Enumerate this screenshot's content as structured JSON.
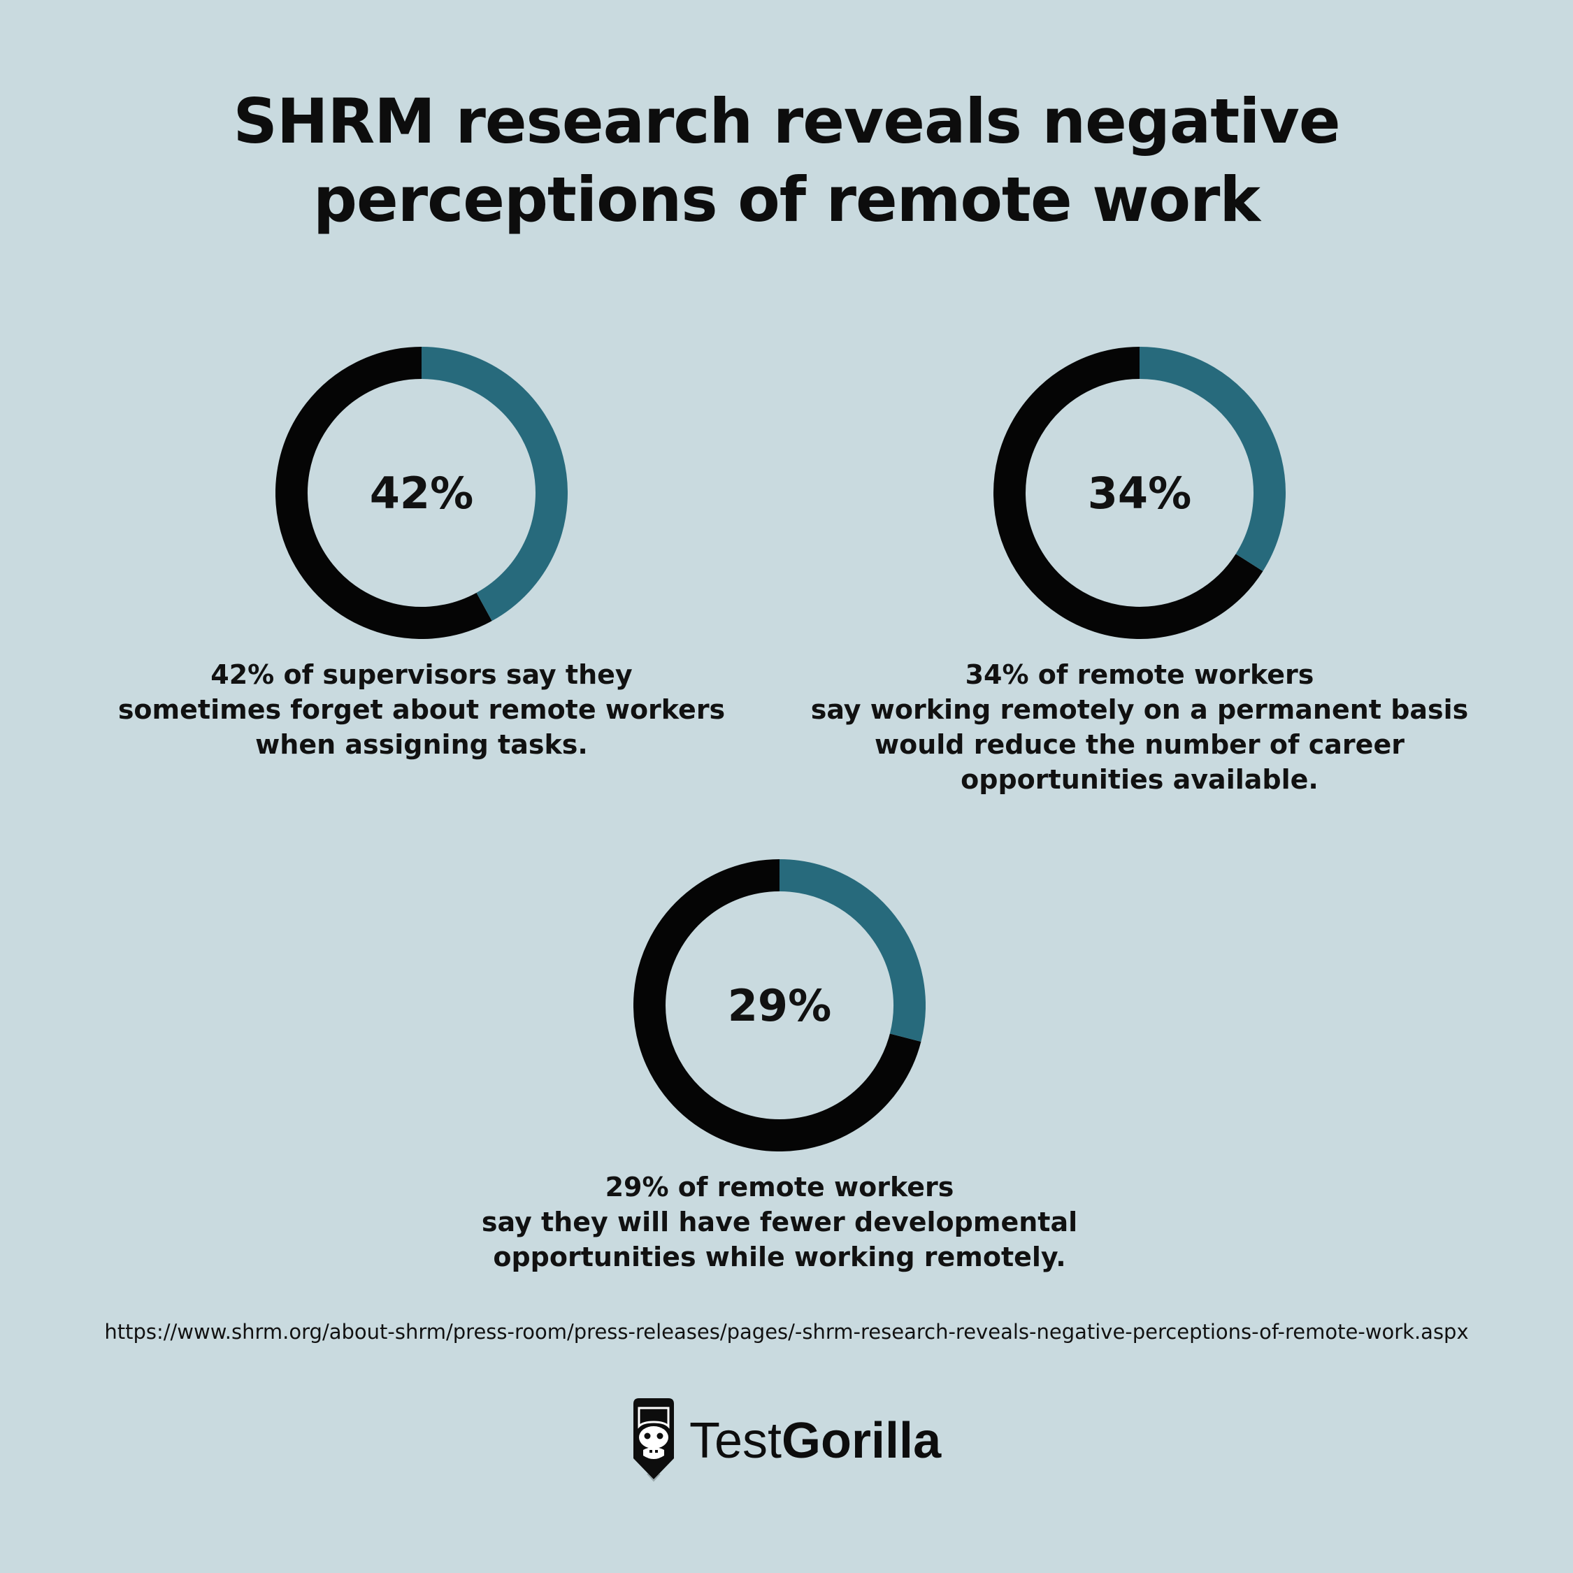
{
  "title": {
    "line1": "SHRM research reveals negative",
    "line2": "perceptions of remote work"
  },
  "colors": {
    "background": "#c9dadf",
    "highlight": "#276a7c",
    "remainder": "#050505"
  },
  "chart_data": [
    {
      "type": "pie",
      "variant": "donut",
      "value": 42,
      "label": "42%",
      "caption": [
        "42% of supervisors say they",
        "sometimes forget about remote workers",
        "when assigning tasks."
      ]
    },
    {
      "type": "pie",
      "variant": "donut",
      "value": 34,
      "label": "34%",
      "caption": [
        "34% of remote workers",
        "say working remotely on a permanent basis",
        "would reduce the number of career",
        "opportunities available."
      ]
    },
    {
      "type": "pie",
      "variant": "donut",
      "value": 29,
      "label": "29%",
      "caption": [
        "29% of remote workers",
        "say they will have fewer developmental",
        "opportunities while working remotely."
      ]
    }
  ],
  "source": {
    "url": "https://www.shrm.org/about-shrm/press-room/press-releases/pages/-shrm-research-reveals-negative-perceptions-of-remote-work.aspx"
  },
  "logo": {
    "icon": "gorilla-icon",
    "text_light": "Test",
    "text_bold": "Gorilla"
  }
}
